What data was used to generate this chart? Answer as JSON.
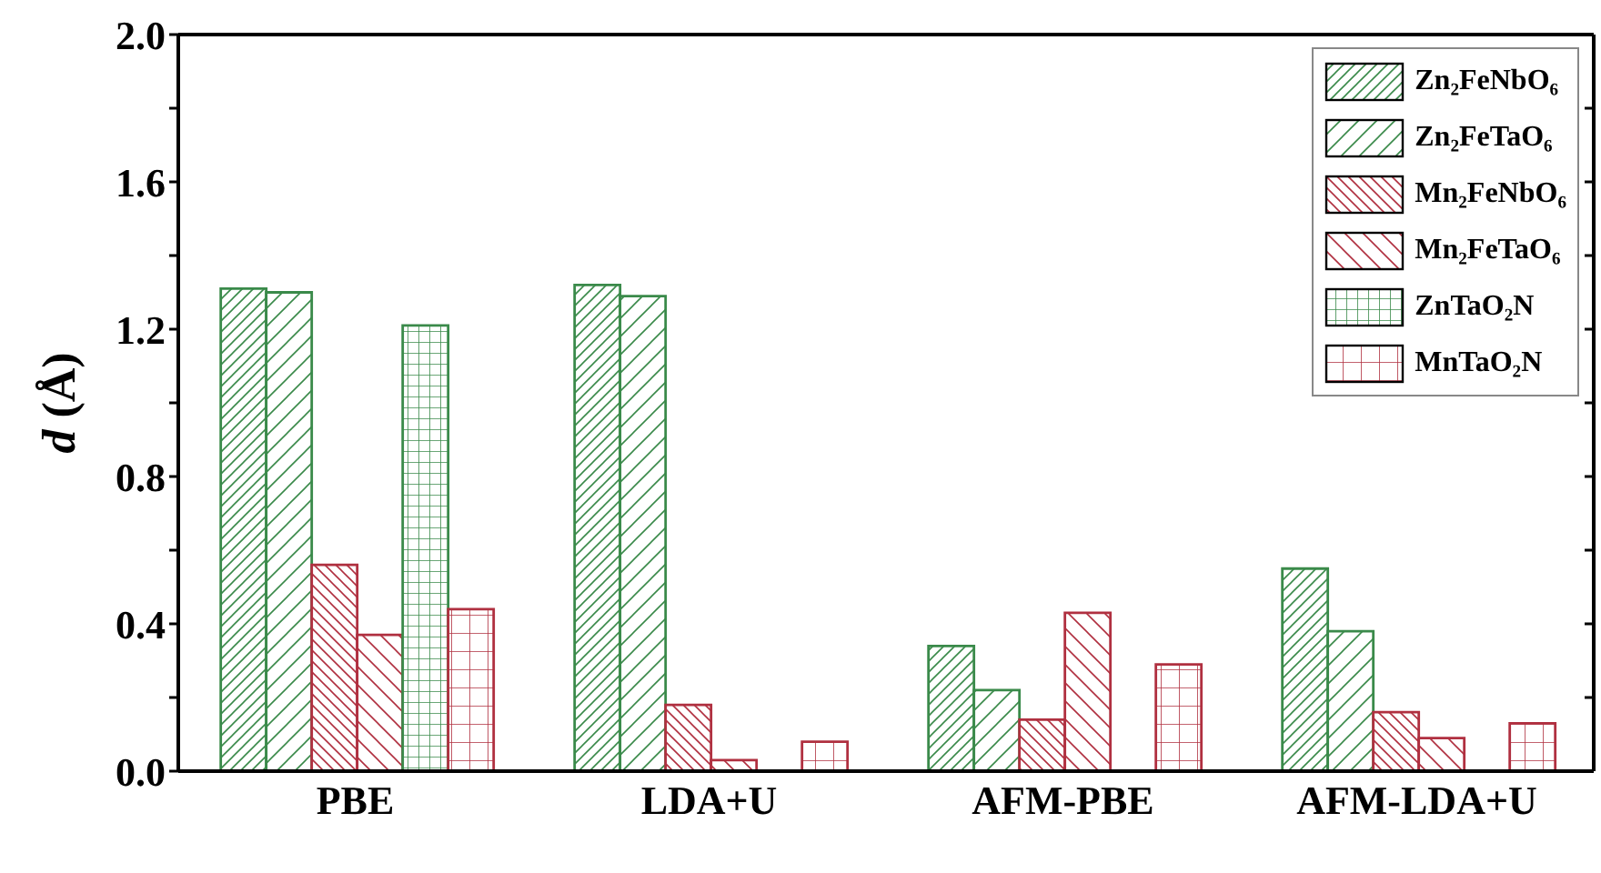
{
  "chart_data": {
    "type": "bar",
    "ylabel": "d (Å)",
    "categories": [
      "PBE",
      "LDA+U",
      "AFM-PBE",
      "AFM-LDA+U"
    ],
    "series": [
      {
        "name": "Zn₂FeNbO₆",
        "color": "#3a8a4a",
        "values": [
          1.31,
          1.32,
          0.34,
          0.55
        ]
      },
      {
        "name": "Zn₂FeTaO₆",
        "color": "#3a8a4a",
        "values": [
          1.3,
          1.29,
          0.22,
          0.38
        ]
      },
      {
        "name": "Mn₂FeNbO₆",
        "color": "#b03040",
        "values": [
          0.56,
          0.18,
          0.14,
          0.16
        ]
      },
      {
        "name": "Mn₂FeTaO₆",
        "color": "#b03040",
        "values": [
          0.37,
          0.03,
          0.43,
          0.09
        ]
      },
      {
        "name": "ZnTaO₂N",
        "color": "#3a8a4a",
        "values": [
          1.21,
          null,
          null,
          null
        ]
      },
      {
        "name": "MnTaO₂N",
        "color": "#b03040",
        "values": [
          0.44,
          0.08,
          0.29,
          0.13
        ]
      }
    ],
    "ylim": [
      0,
      2.0
    ],
    "yticks": [
      {
        "value": 0,
        "label": "0.0"
      },
      {
        "value": 0.2,
        "label": null
      },
      {
        "value": 0.4,
        "label": "0.4"
      },
      {
        "value": 0.6,
        "label": null
      },
      {
        "value": 0.8,
        "label": "0.8"
      },
      {
        "value": 1.0,
        "label": null
      },
      {
        "value": 1.2,
        "label": "1.2"
      },
      {
        "value": 1.4,
        "label": null
      },
      {
        "value": 1.6,
        "label": "1.6"
      },
      {
        "value": 1.8,
        "label": null
      },
      {
        "value": 2.0,
        "label": "2.0"
      }
    ],
    "grid": false,
    "legend": "top right"
  }
}
